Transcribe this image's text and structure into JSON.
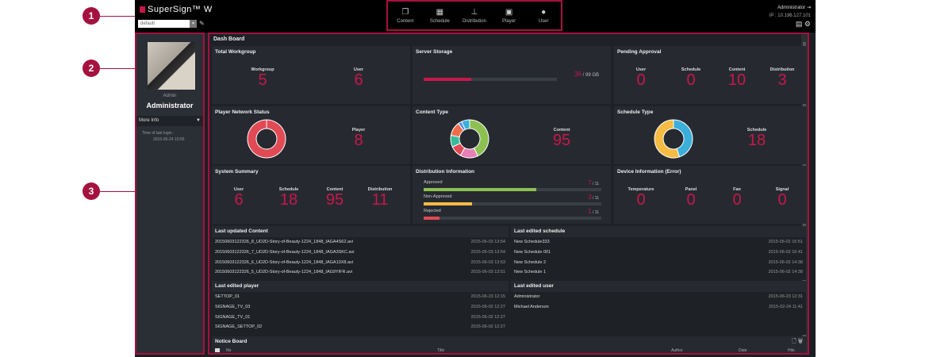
{
  "annotations": [
    "1",
    "2",
    "3"
  ],
  "header": {
    "logo": "SuperSign™ W",
    "workspace": "default",
    "user": "Administrator",
    "ip": "IP : 10.196.127.101",
    "nav": [
      {
        "label": "Content",
        "icon": "content-icon"
      },
      {
        "label": "Schedule",
        "icon": "calendar-icon"
      },
      {
        "label": "Distribution",
        "icon": "distribution-icon"
      },
      {
        "label": "Player",
        "icon": "player-icon"
      },
      {
        "label": "User",
        "icon": "user-icon"
      }
    ]
  },
  "sidebar": {
    "role": "Admin",
    "name": "Administrator",
    "more_info": "More Info",
    "last_login_label": "Time of last login :",
    "last_login": "2015-06-24 10:56"
  },
  "dashboard": {
    "title": "Dash Board",
    "total_workgroup": {
      "title": "Total Workgroup",
      "stats": [
        {
          "label": "Workgroup",
          "value": "5"
        },
        {
          "label": "User",
          "value": "6"
        }
      ]
    },
    "server_storage": {
      "title": "Server Storage",
      "used": "36",
      "total": "/ 99 GB",
      "used_fraction": 0.36
    },
    "pending_approval": {
      "title": "Pending Approval",
      "stats": [
        {
          "label": "User",
          "value": "0"
        },
        {
          "label": "Schedule",
          "value": "0"
        },
        {
          "label": "Content",
          "value": "10"
        },
        {
          "label": "Distribution",
          "value": "3"
        }
      ]
    },
    "player_network": {
      "title": "Player Network Status",
      "label": "Player",
      "value": "8",
      "segments": [
        {
          "value": 1,
          "color": "#e04a55"
        }
      ]
    },
    "content_type": {
      "title": "Content Type",
      "label": "Content",
      "value": "95",
      "segments": [
        {
          "value": 43,
          "color": "#8cc152"
        },
        {
          "value": 15,
          "color": "#e87fb6"
        },
        {
          "value": 10,
          "color": "#e04a55"
        },
        {
          "value": 10,
          "color": "#37bc9b"
        },
        {
          "value": 12,
          "color": "#f06b4a"
        },
        {
          "value": 3,
          "color": "#4a89dc"
        },
        {
          "value": 7,
          "color": "#3bafda"
        }
      ]
    },
    "schedule_type": {
      "title": "Schedule Type",
      "label": "Schedule",
      "value": "18",
      "segments": [
        {
          "value": 45,
          "color": "#3bafda"
        },
        {
          "value": 55,
          "color": "#f6bb42"
        }
      ]
    },
    "system_summary": {
      "title": "System Summary",
      "stats": [
        {
          "label": "User",
          "value": "6"
        },
        {
          "label": "Schedule",
          "value": "18"
        },
        {
          "label": "Content",
          "value": "95"
        },
        {
          "label": "Distribution",
          "value": "11"
        }
      ]
    },
    "distribution_info": {
      "title": "Distribution Information",
      "items": [
        {
          "label": "Approved",
          "count": "7",
          "total": "/ 11",
          "fraction": 0.636,
          "color": "#8cc152"
        },
        {
          "label": "Non-Approved",
          "count": "3",
          "total": "/ 11",
          "fraction": 0.273,
          "color": "#f6bb42"
        },
        {
          "label": "Rejected",
          "count": "1",
          "total": "/ 11",
          "fraction": 0.091,
          "color": "#e04a55"
        }
      ]
    },
    "device_info": {
      "title": "Device Information (Error)",
      "stats": [
        {
          "label": "Temperature",
          "value": "0"
        },
        {
          "label": "Panel",
          "value": "0"
        },
        {
          "label": "Fan",
          "value": "0"
        },
        {
          "label": "Signal",
          "value": "0"
        }
      ]
    },
    "last_content": {
      "title": "Last updated Content",
      "rows": [
        [
          "20150603122326_8_UD2D-Story-of-Beauty-1224_1848_IAGA4S62.avi",
          "2015-06-03 13:54"
        ],
        [
          "20150603122326_7_UD2D-Story-of-Beauty-1224_1848_IAGA3SKC.avi",
          "2015-06-03 13:54"
        ],
        [
          "20150603122326_6_UD2D-Story-of-Beauty-1224_1848_IAGA13X8.avi",
          "2015-06-03 13:53"
        ],
        [
          "20150603122326_5_UD2D-Story-of-Beauty-1224_1848_IAG9YIFR.avi",
          "2015-06-03 13:51"
        ]
      ]
    },
    "last_schedule": {
      "title": "Last edited schedule",
      "rows": [
        [
          "New Schedule333",
          "2015-06-02 16:51"
        ],
        [
          "New Schedule 001",
          "2015-06-02 16:41"
        ],
        [
          "New Schedule 2",
          "2015-06-02 14:38"
        ],
        [
          "New Schedule 1",
          "2015-06-02 14:38"
        ]
      ]
    },
    "last_player": {
      "title": "Last edited player",
      "rows": [
        [
          "SETTOP_01",
          "2015-06-23 12:15"
        ],
        [
          "SIGNAGE_TV_03",
          "2015-06-02 12:27"
        ],
        [
          "SIGNAGE_TV_01",
          "2015-06-02 12:27"
        ],
        [
          "SIGNAGE_SETTOP_02",
          "2015-06-02 12:27"
        ]
      ]
    },
    "last_user": {
      "title": "Last edited user",
      "rows": [
        [
          "Administrator",
          "2015-06-23 12:31"
        ],
        [
          "Michael Anderson",
          "2015-02-24 11:41"
        ]
      ]
    },
    "notice": {
      "title": "Notice Board",
      "columns": [
        "No",
        "Title",
        "Author",
        "Date",
        "Hits"
      ]
    }
  }
}
